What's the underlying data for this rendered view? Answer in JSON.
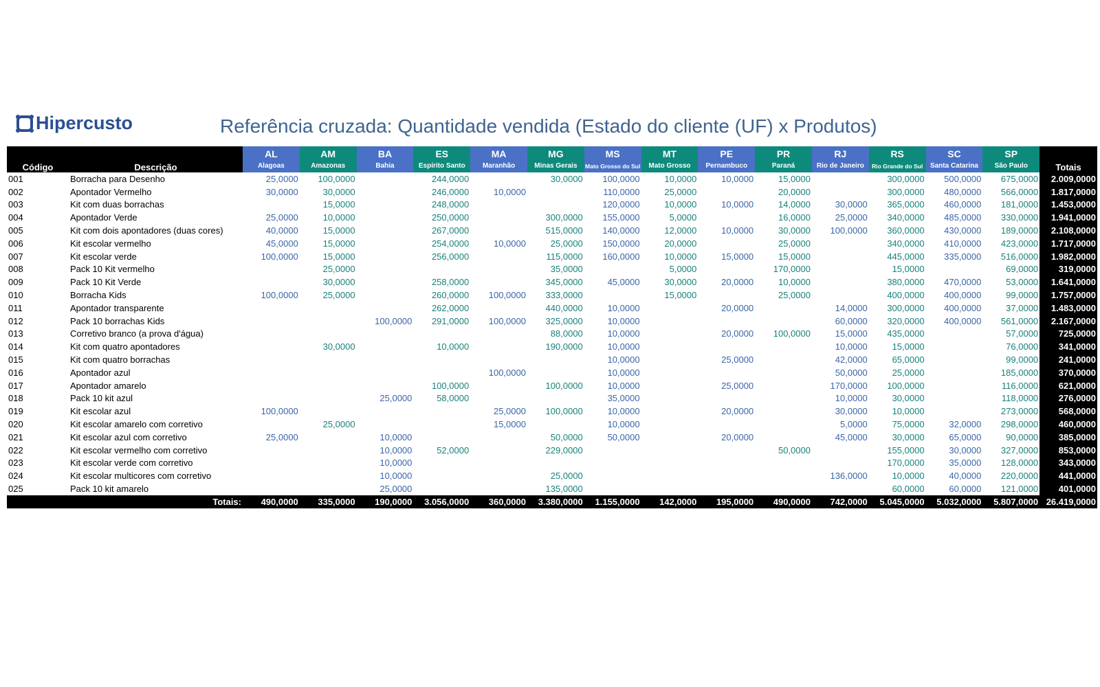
{
  "header": {
    "logo": "Hipercusto",
    "title": "Referência cruzada: Quantidade vendida (Estado do cliente (UF) x Produtos)"
  },
  "table": {
    "code_header": "Código",
    "description_header": "Descrição",
    "totals_header": "Totais",
    "columns": [
      {
        "code": "AL",
        "name": "Alagoas"
      },
      {
        "code": "AM",
        "name": "Amazonas"
      },
      {
        "code": "BA",
        "name": "Bahia"
      },
      {
        "code": "ES",
        "name": "Espírito Santo"
      },
      {
        "code": "MA",
        "name": "Maranhão"
      },
      {
        "code": "MG",
        "name": "Minas Gerais"
      },
      {
        "code": "MS",
        "name": "Mato Grosso do Sul"
      },
      {
        "code": "MT",
        "name": "Mato Grosso"
      },
      {
        "code": "PE",
        "name": "Pernambuco"
      },
      {
        "code": "PR",
        "name": "Paraná"
      },
      {
        "code": "RJ",
        "name": "Rio de Janeiro"
      },
      {
        "code": "RS",
        "name": "Rio Grande do Sul"
      },
      {
        "code": "SC",
        "name": "Santa Catarina"
      },
      {
        "code": "SP",
        "name": "São Paulo"
      }
    ],
    "rows": [
      {
        "code": "001",
        "description": "Borracha para Desenho",
        "cells": [
          "25,0000",
          "100,0000",
          null,
          "244,0000",
          null,
          "30,0000",
          "100,0000",
          "10,0000",
          "10,0000",
          "15,0000",
          null,
          "300,0000",
          "500,0000",
          "675,0000"
        ],
        "total": "2.009,0000"
      },
      {
        "code": "002",
        "description": "Apontador Vermelho",
        "cells": [
          "30,0000",
          "30,0000",
          null,
          "246,0000",
          "10,0000",
          null,
          "110,0000",
          "25,0000",
          null,
          "20,0000",
          null,
          "300,0000",
          "480,0000",
          "566,0000"
        ],
        "total": "1.817,0000"
      },
      {
        "code": "003",
        "description": "Kit com duas borrachas",
        "cells": [
          null,
          "15,0000",
          null,
          "248,0000",
          null,
          null,
          "120,0000",
          "10,0000",
          "10,0000",
          "14,0000",
          "30,0000",
          "365,0000",
          "460,0000",
          "181,0000"
        ],
        "total": "1.453,0000"
      },
      {
        "code": "004",
        "description": "Apontador Verde",
        "cells": [
          "25,0000",
          "10,0000",
          null,
          "250,0000",
          null,
          "300,0000",
          "155,0000",
          "5,0000",
          null,
          "16,0000",
          "25,0000",
          "340,0000",
          "485,0000",
          "330,0000"
        ],
        "total": "1.941,0000"
      },
      {
        "code": "005",
        "description": "Kit com dois apontadores (duas cores)",
        "cells": [
          "40,0000",
          "15,0000",
          null,
          "267,0000",
          null,
          "515,0000",
          "140,0000",
          "12,0000",
          "10,0000",
          "30,0000",
          "100,0000",
          "360,0000",
          "430,0000",
          "189,0000"
        ],
        "total": "2.108,0000"
      },
      {
        "code": "006",
        "description": "Kit escolar vermelho",
        "cells": [
          "45,0000",
          "15,0000",
          null,
          "254,0000",
          "10,0000",
          "25,0000",
          "150,0000",
          "20,0000",
          null,
          "25,0000",
          null,
          "340,0000",
          "410,0000",
          "423,0000"
        ],
        "total": "1.717,0000"
      },
      {
        "code": "007",
        "description": "Kit escolar verde",
        "cells": [
          "100,0000",
          "15,0000",
          null,
          "256,0000",
          null,
          "115,0000",
          "160,0000",
          "10,0000",
          "15,0000",
          "15,0000",
          null,
          "445,0000",
          "335,0000",
          "516,0000"
        ],
        "total": "1.982,0000"
      },
      {
        "code": "008",
        "description": "Pack 10 Kit vermelho",
        "cells": [
          null,
          "25,0000",
          null,
          null,
          null,
          "35,0000",
          null,
          "5,0000",
          null,
          "170,0000",
          null,
          "15,0000",
          null,
          "69,0000"
        ],
        "total": "319,0000"
      },
      {
        "code": "009",
        "description": "Pack 10 Kit Verde",
        "cells": [
          null,
          "30,0000",
          null,
          "258,0000",
          null,
          "345,0000",
          "45,0000",
          "30,0000",
          "20,0000",
          "10,0000",
          null,
          "380,0000",
          "470,0000",
          "53,0000"
        ],
        "total": "1.641,0000"
      },
      {
        "code": "010",
        "description": "Borracha Kids",
        "cells": [
          "100,0000",
          "25,0000",
          null,
          "260,0000",
          "100,0000",
          "333,0000",
          null,
          "15,0000",
          null,
          "25,0000",
          null,
          "400,0000",
          "400,0000",
          "99,0000"
        ],
        "total": "1.757,0000"
      },
      {
        "code": "011",
        "description": "Apontador transparente",
        "cells": [
          null,
          null,
          null,
          "262,0000",
          null,
          "440,0000",
          "10,0000",
          null,
          "20,0000",
          null,
          "14,0000",
          "300,0000",
          "400,0000",
          "37,0000"
        ],
        "total": "1.483,0000"
      },
      {
        "code": "012",
        "description": "Pack 10 borrachas Kids",
        "cells": [
          null,
          null,
          "100,0000",
          "291,0000",
          "100,0000",
          "325,0000",
          "10,0000",
          null,
          null,
          null,
          "60,0000",
          "320,0000",
          "400,0000",
          "561,0000"
        ],
        "total": "2.167,0000"
      },
      {
        "code": "013",
        "description": "Corretivo branco (a prova d'água)",
        "cells": [
          null,
          null,
          null,
          null,
          null,
          "88,0000",
          "10,0000",
          null,
          "20,0000",
          "100,0000",
          "15,0000",
          "435,0000",
          null,
          "57,0000"
        ],
        "total": "725,0000"
      },
      {
        "code": "014",
        "description": "Kit com quatro apontadores",
        "cells": [
          null,
          "30,0000",
          null,
          "10,0000",
          null,
          "190,0000",
          "10,0000",
          null,
          null,
          null,
          "10,0000",
          "15,0000",
          null,
          "76,0000"
        ],
        "total": "341,0000"
      },
      {
        "code": "015",
        "description": "Kit com quatro borrachas",
        "cells": [
          null,
          null,
          null,
          null,
          null,
          null,
          "10,0000",
          null,
          "25,0000",
          null,
          "42,0000",
          "65,0000",
          null,
          "99,0000"
        ],
        "total": "241,0000"
      },
      {
        "code": "016",
        "description": "Apontador azul",
        "cells": [
          null,
          null,
          null,
          null,
          "100,0000",
          null,
          "10,0000",
          null,
          null,
          null,
          "50,0000",
          "25,0000",
          null,
          "185,0000"
        ],
        "total": "370,0000"
      },
      {
        "code": "017",
        "description": "Apontador amarelo",
        "cells": [
          null,
          null,
          null,
          "100,0000",
          null,
          "100,0000",
          "10,0000",
          null,
          "25,0000",
          null,
          "170,0000",
          "100,0000",
          null,
          "116,0000"
        ],
        "total": "621,0000"
      },
      {
        "code": "018",
        "description": "Pack 10 kit azul",
        "cells": [
          null,
          null,
          "25,0000",
          "58,0000",
          null,
          null,
          "35,0000",
          null,
          null,
          null,
          "10,0000",
          "30,0000",
          null,
          "118,0000"
        ],
        "total": "276,0000"
      },
      {
        "code": "019",
        "description": "Kit escolar azul",
        "cells": [
          "100,0000",
          null,
          null,
          null,
          "25,0000",
          "100,0000",
          "10,0000",
          null,
          "20,0000",
          null,
          "30,0000",
          "10,0000",
          null,
          "273,0000"
        ],
        "total": "568,0000"
      },
      {
        "code": "020",
        "description": "Kit escolar amarelo com corretivo",
        "cells": [
          null,
          "25,0000",
          null,
          null,
          "15,0000",
          null,
          "10,0000",
          null,
          null,
          null,
          "5,0000",
          "75,0000",
          "32,0000",
          "298,0000"
        ],
        "total": "460,0000"
      },
      {
        "code": "021",
        "description": "Kit escolar azul com corretivo",
        "cells": [
          "25,0000",
          null,
          "10,0000",
          null,
          null,
          "50,0000",
          "50,0000",
          null,
          "20,0000",
          null,
          "45,0000",
          "30,0000",
          "65,0000",
          "90,0000"
        ],
        "total": "385,0000"
      },
      {
        "code": "022",
        "description": "Kit escolar vermelho com corretivo",
        "cells": [
          null,
          null,
          "10,0000",
          "52,0000",
          null,
          "229,0000",
          null,
          null,
          null,
          "50,0000",
          null,
          "155,0000",
          "30,0000",
          "327,0000"
        ],
        "total": "853,0000"
      },
      {
        "code": "023",
        "description": "Kit escolar verde com corretivo",
        "cells": [
          null,
          null,
          "10,0000",
          null,
          null,
          null,
          null,
          null,
          null,
          null,
          null,
          "170,0000",
          "35,0000",
          "128,0000"
        ],
        "total": "343,0000"
      },
      {
        "code": "024",
        "description": "Kit escolar multicores com corretivo",
        "cells": [
          null,
          null,
          "10,0000",
          null,
          null,
          "25,0000",
          null,
          null,
          null,
          null,
          "136,0000",
          "10,0000",
          "40,0000",
          "220,0000"
        ],
        "total": "441,0000"
      },
      {
        "code": "025",
        "description": "Pack 10 kit amarelo",
        "cells": [
          null,
          null,
          "25,0000",
          null,
          null,
          "135,0000",
          null,
          null,
          null,
          null,
          null,
          "60,0000",
          "60,0000",
          "121,0000"
        ],
        "total": "401,0000"
      }
    ],
    "footer": {
      "label": "Totais:",
      "cells": [
        "490,0000",
        "335,0000",
        "190,0000",
        "3.056,0000",
        "360,0000",
        "3.380,0000",
        "1.155,0000",
        "142,0000",
        "195,0000",
        "490,0000",
        "742,0000",
        "5.045,0000",
        "5.032,0000",
        "5.807,0000"
      ],
      "total": "26.419,0000"
    }
  }
}
